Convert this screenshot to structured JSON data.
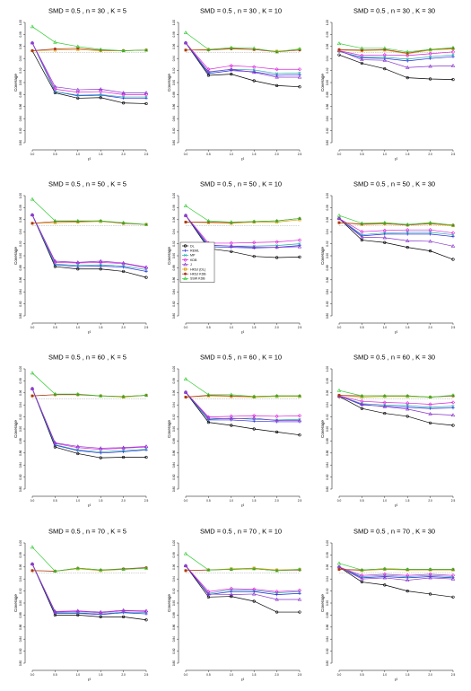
{
  "chart_data": {
    "type": "line",
    "ylabel": "Coverage",
    "xlabel": "τ²",
    "x": [
      0,
      0.5,
      1,
      1.5,
      2,
      2.5
    ],
    "x_tick_labels": [
      "0.0",
      "0.5",
      "1.0",
      "1.5",
      "2.0",
      "2.5"
    ],
    "ylim": [
      0.8,
      1.0
    ],
    "y_ticks": [
      0.8,
      0.82,
      0.84,
      0.86,
      0.88,
      0.9,
      0.92,
      0.94,
      0.96,
      0.98,
      1.0
    ],
    "y_tick_labels": [
      "0.80",
      "0.82",
      "0.84",
      "0.86",
      "0.88",
      "0.90",
      "0.92",
      "0.94",
      "0.96",
      "0.98",
      "1.00"
    ],
    "nominal_line": 0.95,
    "legend": {
      "placement": "row-2-col-2-left",
      "entries": [
        {
          "label": "DL",
          "color": "#000000",
          "marker": "circle"
        },
        {
          "label": "REML",
          "color": "#2222dd",
          "marker": "plus"
        },
        {
          "label": "MP",
          "color": "#22aaaa",
          "marker": "x"
        },
        {
          "label": "KDB",
          "color": "#dd22dd",
          "marker": "diamond"
        },
        {
          "label": "J",
          "color": "#8833cc",
          "marker": "triangle"
        },
        {
          "label": "HKSJ (DL)",
          "color": "#dd9900",
          "marker": "xbox"
        },
        {
          "label": "HKSJ KDB",
          "color": "#aa3322",
          "marker": "circle-filled"
        },
        {
          "label": "SSW KDB",
          "color": "#33cc33",
          "marker": "triangle"
        }
      ]
    },
    "panels": [
      {
        "title": "SMD = 0.5 , n = 30 , K = 5",
        "series": [
          [
            0.953,
            0.883,
            0.874,
            0.875,
            0.866,
            0.865
          ],
          [
            0.966,
            0.885,
            0.878,
            0.879,
            0.874,
            0.874
          ],
          [
            0.966,
            0.885,
            0.879,
            0.88,
            0.876,
            0.876
          ],
          [
            0.966,
            0.889,
            0.884,
            0.885,
            0.88,
            0.88
          ],
          [
            0.966,
            0.893,
            0.888,
            0.889,
            0.883,
            0.883
          ],
          [
            0.953,
            0.954,
            0.955,
            0.953,
            0.953,
            0.954
          ],
          [
            0.953,
            0.956,
            0.957,
            0.954,
            0.953,
            0.954
          ],
          [
            0.993,
            0.967,
            0.96,
            0.955,
            0.953,
            0.954
          ]
        ]
      },
      {
        "title": "SMD = 0.5 , n = 30 , K = 10",
        "series": [
          [
            0.966,
            0.912,
            0.914,
            0.903,
            0.895,
            0.893
          ],
          [
            0.966,
            0.915,
            0.92,
            0.918,
            0.912,
            0.913
          ],
          [
            0.966,
            0.917,
            0.922,
            0.921,
            0.915,
            0.916
          ],
          [
            0.966,
            0.922,
            0.928,
            0.926,
            0.922,
            0.922
          ],
          [
            0.966,
            0.918,
            0.922,
            0.917,
            0.909,
            0.909
          ],
          [
            0.954,
            0.955,
            0.957,
            0.955,
            0.952,
            0.955
          ],
          [
            0.954,
            0.954,
            0.956,
            0.955,
            0.951,
            0.954
          ],
          [
            0.983,
            0.955,
            0.958,
            0.957,
            0.951,
            0.956
          ]
        ]
      },
      {
        "title": "SMD = 0.5 , n = 30 , K = 30",
        "series": [
          [
            0.946,
            0.932,
            0.923,
            0.908,
            0.906,
            0.905
          ],
          [
            0.952,
            0.941,
            0.94,
            0.936,
            0.94,
            0.943
          ],
          [
            0.952,
            0.942,
            0.942,
            0.939,
            0.943,
            0.946
          ],
          [
            0.953,
            0.945,
            0.946,
            0.945,
            0.948,
            0.951
          ],
          [
            0.953,
            0.938,
            0.937,
            0.925,
            0.927,
            0.928
          ],
          [
            0.954,
            0.953,
            0.954,
            0.948,
            0.954,
            0.956
          ],
          [
            0.955,
            0.954,
            0.955,
            0.949,
            0.955,
            0.957
          ],
          [
            0.965,
            0.957,
            0.957,
            0.951,
            0.955,
            0.958
          ]
        ]
      },
      {
        "title": "SMD = 0.5 , n = 50 , K = 5",
        "series": [
          [
            0.968,
            0.882,
            0.878,
            0.878,
            0.874,
            0.864
          ],
          [
            0.968,
            0.885,
            0.882,
            0.883,
            0.881,
            0.874
          ],
          [
            0.968,
            0.886,
            0.884,
            0.885,
            0.883,
            0.877
          ],
          [
            0.968,
            0.889,
            0.888,
            0.889,
            0.887,
            0.88
          ],
          [
            0.968,
            0.891,
            0.889,
            0.891,
            0.888,
            0.881
          ],
          [
            0.954,
            0.955,
            0.956,
            0.957,
            0.954,
            0.952
          ],
          [
            0.954,
            0.957,
            0.957,
            0.958,
            0.954,
            0.952
          ],
          [
            0.994,
            0.958,
            0.958,
            0.958,
            0.955,
            0.952
          ]
        ]
      },
      {
        "title": "SMD = 0.5 , n = 50 , K = 10",
        "series": [
          [
            0.967,
            0.912,
            0.907,
            0.899,
            0.897,
            0.898
          ],
          [
            0.967,
            0.915,
            0.914,
            0.913,
            0.914,
            0.917
          ],
          [
            0.967,
            0.917,
            0.916,
            0.916,
            0.917,
            0.92
          ],
          [
            0.967,
            0.921,
            0.921,
            0.922,
            0.923,
            0.926
          ],
          [
            0.967,
            0.918,
            0.916,
            0.914,
            0.914,
            0.915
          ],
          [
            0.956,
            0.955,
            0.954,
            0.956,
            0.956,
            0.96
          ],
          [
            0.956,
            0.956,
            0.955,
            0.957,
            0.958,
            0.962
          ],
          [
            0.983,
            0.958,
            0.956,
            0.957,
            0.958,
            0.962
          ]
        ]
      },
      {
        "title": "SMD = 0.5 , n = 50 , K = 30",
        "series": [
          [
            0.962,
            0.926,
            0.922,
            0.914,
            0.908,
            0.894
          ],
          [
            0.962,
            0.933,
            0.936,
            0.936,
            0.936,
            0.932
          ],
          [
            0.962,
            0.935,
            0.938,
            0.939,
            0.939,
            0.935
          ],
          [
            0.962,
            0.94,
            0.942,
            0.943,
            0.943,
            0.938
          ],
          [
            0.962,
            0.931,
            0.93,
            0.925,
            0.924,
            0.916
          ],
          [
            0.955,
            0.952,
            0.953,
            0.951,
            0.953,
            0.95
          ],
          [
            0.955,
            0.953,
            0.954,
            0.951,
            0.954,
            0.951
          ],
          [
            0.967,
            0.954,
            0.955,
            0.952,
            0.955,
            0.951
          ]
        ]
      },
      {
        "title": "SMD = 0.5 , n = 60 , K = 5",
        "series": [
          [
            0.967,
            0.87,
            0.859,
            0.852,
            0.853,
            0.853
          ],
          [
            0.967,
            0.873,
            0.864,
            0.86,
            0.862,
            0.865
          ],
          [
            0.967,
            0.874,
            0.865,
            0.862,
            0.864,
            0.866
          ],
          [
            0.967,
            0.876,
            0.869,
            0.866,
            0.868,
            0.87
          ],
          [
            0.967,
            0.877,
            0.871,
            0.868,
            0.869,
            0.871
          ],
          [
            0.955,
            0.957,
            0.957,
            0.955,
            0.953,
            0.956
          ],
          [
            0.955,
            0.957,
            0.957,
            0.955,
            0.954,
            0.956
          ],
          [
            0.993,
            0.958,
            0.958,
            0.955,
            0.954,
            0.956
          ]
        ]
      },
      {
        "title": "SMD = 0.5 , n = 60 , K = 10",
        "series": [
          [
            0.961,
            0.911,
            0.906,
            0.9,
            0.895,
            0.89
          ],
          [
            0.961,
            0.915,
            0.915,
            0.913,
            0.912,
            0.912
          ],
          [
            0.961,
            0.916,
            0.918,
            0.916,
            0.915,
            0.916
          ],
          [
            0.961,
            0.92,
            0.921,
            0.922,
            0.921,
            0.922
          ],
          [
            0.961,
            0.918,
            0.917,
            0.918,
            0.914,
            0.914
          ],
          [
            0.953,
            0.955,
            0.954,
            0.953,
            0.954,
            0.954
          ],
          [
            0.953,
            0.956,
            0.955,
            0.954,
            0.955,
            0.955
          ],
          [
            0.983,
            0.957,
            0.957,
            0.954,
            0.955,
            0.955
          ]
        ]
      },
      {
        "title": "SMD = 0.5 , n = 60 , K = 30",
        "series": [
          [
            0.954,
            0.934,
            0.926,
            0.921,
            0.91,
            0.906
          ],
          [
            0.955,
            0.94,
            0.938,
            0.936,
            0.934,
            0.935
          ],
          [
            0.955,
            0.942,
            0.94,
            0.939,
            0.936,
            0.938
          ],
          [
            0.955,
            0.946,
            0.944,
            0.943,
            0.941,
            0.944
          ],
          [
            0.955,
            0.941,
            0.937,
            0.933,
            0.925,
            0.923
          ],
          [
            0.956,
            0.953,
            0.954,
            0.954,
            0.953,
            0.955
          ],
          [
            0.956,
            0.955,
            0.955,
            0.955,
            0.953,
            0.955
          ],
          [
            0.964,
            0.955,
            0.955,
            0.955,
            0.953,
            0.956
          ]
        ]
      },
      {
        "title": "SMD = 0.5 , n = 70 , K = 5",
        "series": [
          [
            0.965,
            0.88,
            0.88,
            0.877,
            0.877,
            0.872
          ],
          [
            0.965,
            0.883,
            0.883,
            0.881,
            0.884,
            0.882
          ],
          [
            0.965,
            0.884,
            0.884,
            0.882,
            0.885,
            0.884
          ],
          [
            0.965,
            0.885,
            0.886,
            0.884,
            0.887,
            0.886
          ],
          [
            0.965,
            0.886,
            0.887,
            0.885,
            0.888,
            0.887
          ],
          [
            0.954,
            0.953,
            0.957,
            0.954,
            0.956,
            0.958
          ],
          [
            0.954,
            0.953,
            0.958,
            0.955,
            0.957,
            0.959
          ],
          [
            0.993,
            0.953,
            0.958,
            0.955,
            0.956,
            0.958
          ]
        ]
      },
      {
        "title": "SMD = 0.5 , n = 70 , K = 10",
        "series": [
          [
            0.962,
            0.91,
            0.911,
            0.903,
            0.885,
            0.885
          ],
          [
            0.962,
            0.914,
            0.919,
            0.919,
            0.914,
            0.916
          ],
          [
            0.962,
            0.916,
            0.922,
            0.921,
            0.917,
            0.919
          ],
          [
            0.962,
            0.919,
            0.924,
            0.923,
            0.919,
            0.921
          ],
          [
            0.962,
            0.915,
            0.914,
            0.915,
            0.906,
            0.906
          ],
          [
            0.954,
            0.955,
            0.957,
            0.958,
            0.955,
            0.956
          ],
          [
            0.954,
            0.955,
            0.956,
            0.957,
            0.954,
            0.955
          ],
          [
            0.982,
            0.955,
            0.956,
            0.957,
            0.954,
            0.956
          ]
        ]
      },
      {
        "title": "SMD = 0.5 , n = 70 , K = 30",
        "series": [
          [
            0.96,
            0.935,
            0.93,
            0.92,
            0.915,
            0.91
          ],
          [
            0.96,
            0.942,
            0.944,
            0.942,
            0.944,
            0.942
          ],
          [
            0.96,
            0.944,
            0.946,
            0.944,
            0.946,
            0.944
          ],
          [
            0.96,
            0.946,
            0.948,
            0.946,
            0.948,
            0.946
          ],
          [
            0.96,
            0.94,
            0.942,
            0.938,
            0.942,
            0.94
          ],
          [
            0.956,
            0.954,
            0.956,
            0.955,
            0.955,
            0.955
          ],
          [
            0.956,
            0.955,
            0.957,
            0.956,
            0.956,
            0.956
          ],
          [
            0.966,
            0.955,
            0.957,
            0.956,
            0.956,
            0.956
          ]
        ]
      }
    ]
  }
}
